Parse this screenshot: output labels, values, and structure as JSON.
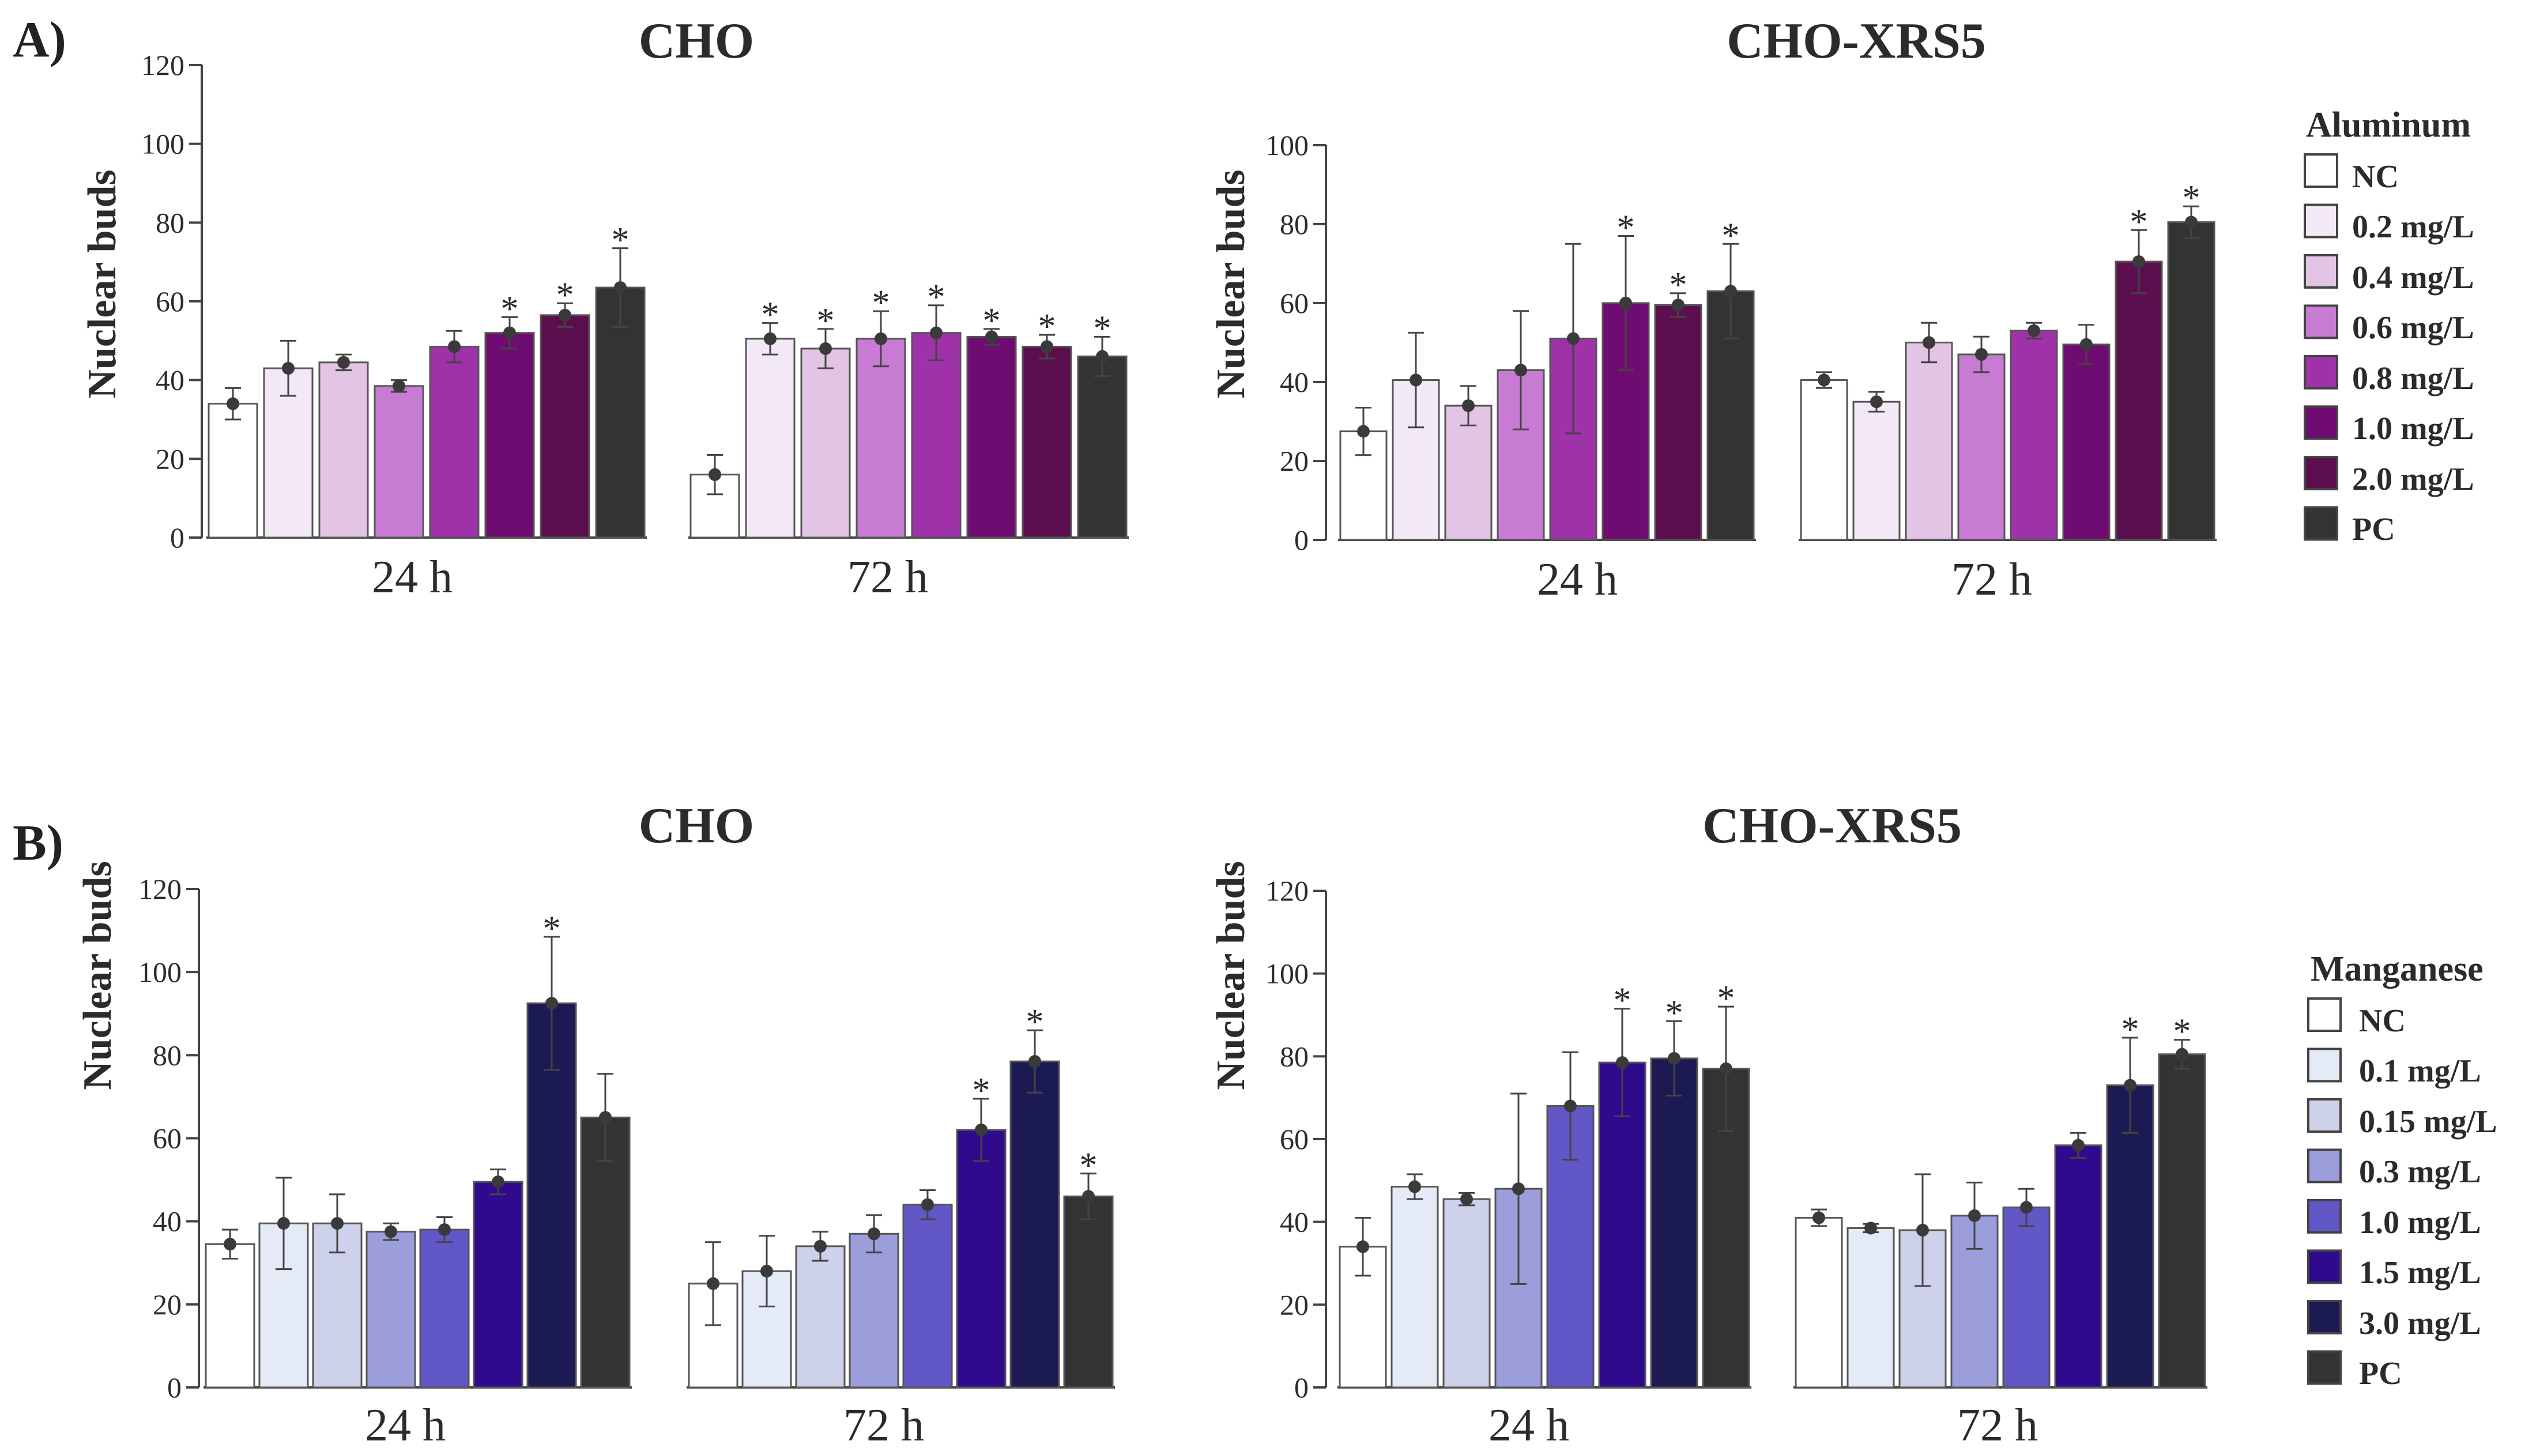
{
  "panels": [
    {
      "letter": "A)",
      "legend": {
        "title": "Aluminum",
        "items": [
          "NC",
          "0.2 mg/L",
          "0.4 mg/L",
          "0.6 mg/L",
          "0.8 mg/L",
          "1.0 mg/L",
          "2.0 mg/L",
          "PC"
        ]
      }
    },
    {
      "letter": "B)",
      "legend": {
        "title": "Manganese",
        "items": [
          "NC",
          "0.1 mg/L",
          "0.15 mg/L",
          "0.3 mg/L",
          "1.0 mg/L",
          "1.5 mg/L",
          "3.0 mg/L",
          "PC"
        ]
      }
    }
  ],
  "palettes": {
    "aluminum": [
      "#ffffff",
      "#f3e9f6",
      "#e2c4e4",
      "#c77bd3",
      "#9f32a8",
      "#6e0c72",
      "#5c0f4f",
      "#333333"
    ],
    "manganese": [
      "#ffffff",
      "#e4ebf7",
      "#cdd1e9",
      "#9c9edc",
      "#6257c7",
      "#2f0a8c",
      "#1c1a52",
      "#333333"
    ]
  },
  "chart_data": [
    {
      "type": "bar",
      "panel": "A)",
      "title": "CHO",
      "ylabel": "Nuclear buds",
      "ylim": [
        0,
        120
      ],
      "yticks": [
        0,
        20,
        40,
        60,
        80,
        100,
        120
      ],
      "palette": "aluminum",
      "categories": [
        "NC",
        "0.2 mg/L",
        "0.4 mg/L",
        "0.6 mg/L",
        "0.8 mg/L",
        "1.0 mg/L",
        "2.0 mg/L",
        "PC"
      ],
      "groups": [
        {
          "label": "24 h",
          "values": [
            34,
            43,
            44.5,
            38.5,
            48.5,
            52,
            56.5,
            63.5
          ],
          "errors": [
            4,
            7,
            2,
            1.5,
            4,
            4,
            3,
            10
          ],
          "significant": [
            false,
            false,
            false,
            false,
            false,
            true,
            true,
            true
          ]
        },
        {
          "label": "72 h",
          "values": [
            16,
            50.5,
            48,
            50.5,
            52,
            51,
            48.5,
            46
          ],
          "errors": [
            5,
            4,
            5,
            7,
            7,
            2,
            3,
            5
          ],
          "significant": [
            false,
            true,
            true,
            true,
            true,
            true,
            true,
            true
          ]
        }
      ]
    },
    {
      "type": "bar",
      "panel": "A)",
      "title": "CHO-XRS5",
      "ylabel": "Nuclear buds",
      "ylim": [
        0,
        100
      ],
      "yticks": [
        0,
        20,
        40,
        60,
        80,
        100
      ],
      "palette": "aluminum",
      "categories": [
        "NC",
        "0.2 mg/L",
        "0.4 mg/L",
        "0.6 mg/L",
        "0.8 mg/L",
        "1.0 mg/L",
        "2.0 mg/L",
        "PC"
      ],
      "groups": [
        {
          "label": "24 h",
          "values": [
            27.5,
            40.5,
            34,
            43,
            51,
            60,
            59.5,
            63
          ],
          "errors": [
            6,
            12,
            5,
            15,
            24,
            17,
            3,
            12
          ],
          "significant": [
            false,
            false,
            false,
            false,
            false,
            true,
            true,
            true
          ]
        },
        {
          "label": "72 h",
          "values": [
            40.5,
            35,
            50,
            47,
            53,
            49.5,
            70.5,
            80.5
          ],
          "errors": [
            2,
            2.5,
            5,
            4.5,
            2,
            5,
            8,
            4
          ],
          "significant": [
            false,
            false,
            false,
            false,
            false,
            false,
            true,
            true
          ]
        }
      ]
    },
    {
      "type": "bar",
      "panel": "B)",
      "title": "CHO",
      "ylabel": "Nuclear buds",
      "ylim": [
        0,
        120
      ],
      "yticks": [
        0,
        20,
        40,
        60,
        80,
        100,
        120
      ],
      "palette": "manganese",
      "categories": [
        "NC",
        "0.1 mg/L",
        "0.15 mg/L",
        "0.3 mg/L",
        "1.0 mg/L",
        "1.5 mg/L",
        "3.0 mg/L",
        "PC"
      ],
      "groups": [
        {
          "label": "24 h",
          "values": [
            34.5,
            39.5,
            39.5,
            37.5,
            38,
            49.5,
            92.5,
            65
          ],
          "errors": [
            3.5,
            11,
            7,
            2,
            3,
            3,
            16,
            10.5
          ],
          "significant": [
            false,
            false,
            false,
            false,
            false,
            false,
            true,
            false
          ]
        },
        {
          "label": "72 h",
          "values": [
            25,
            28,
            34,
            37,
            44,
            62,
            78.5,
            46
          ],
          "errors": [
            10,
            8.5,
            3.5,
            4.5,
            3.5,
            7.5,
            7.5,
            5.5
          ],
          "significant": [
            false,
            false,
            false,
            false,
            false,
            true,
            true,
            true
          ]
        }
      ]
    },
    {
      "type": "bar",
      "panel": "B)",
      "title": "CHO-XRS5",
      "ylabel": "Nuclear buds",
      "ylim": [
        0,
        120
      ],
      "yticks": [
        0,
        20,
        40,
        60,
        80,
        100,
        120
      ],
      "palette": "manganese",
      "categories": [
        "NC",
        "0.1 mg/L",
        "0.15 mg/L",
        "0.3 mg/L",
        "1.0 mg/L",
        "1.5 mg/L",
        "3.0 mg/L",
        "PC"
      ],
      "groups": [
        {
          "label": "24 h",
          "values": [
            34,
            48.5,
            45.5,
            48,
            68,
            78.5,
            79.5,
            77
          ],
          "errors": [
            7,
            3,
            1.5,
            23,
            13,
            13,
            9,
            15
          ],
          "significant": [
            false,
            false,
            false,
            false,
            false,
            true,
            true,
            true
          ]
        },
        {
          "label": "72 h",
          "values": [
            41,
            38.5,
            38,
            41.5,
            43.5,
            58.5,
            73,
            80.5
          ],
          "errors": [
            2,
            1,
            13.5,
            8,
            4.5,
            3,
            11.5,
            3.5
          ],
          "significant": [
            false,
            false,
            false,
            false,
            false,
            false,
            true,
            true
          ]
        }
      ]
    }
  ]
}
